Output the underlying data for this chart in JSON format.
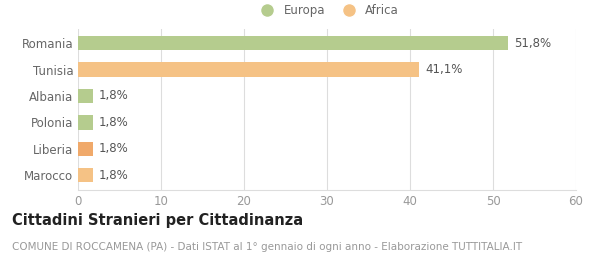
{
  "categories": [
    "Marocco",
    "Liberia",
    "Polonia",
    "Albania",
    "Tunisia",
    "Romania"
  ],
  "values": [
    1.8,
    1.8,
    1.8,
    1.8,
    41.1,
    51.8
  ],
  "bar_colors": [
    "#f5c285",
    "#f0a96a",
    "#b5cc8e",
    "#b5cc8e",
    "#f5c285",
    "#b5cc8e"
  ],
  "bar_labels": [
    "1,8%",
    "1,8%",
    "1,8%",
    "1,8%",
    "41,1%",
    "51,8%"
  ],
  "legend_labels": [
    "Europa",
    "Africa"
  ],
  "legend_colors": [
    "#b5cc8e",
    "#f5c285"
  ],
  "xlim": [
    0,
    60
  ],
  "xticks": [
    0,
    10,
    20,
    30,
    40,
    50,
    60
  ],
  "title": "Cittadini Stranieri per Cittadinanza",
  "subtitle": "COMUNE DI ROCCAMENA (PA) - Dati ISTAT al 1° gennaio di ogni anno - Elaborazione TUTTITALIA.IT",
  "background_color": "#ffffff",
  "grid_color": "#dddddd",
  "label_fontsize": 8.5,
  "tick_fontsize": 8.5,
  "title_fontsize": 10.5,
  "subtitle_fontsize": 7.5,
  "bar_label_fontsize": 8.5,
  "ylabel_color": "#666666",
  "tick_color": "#999999"
}
